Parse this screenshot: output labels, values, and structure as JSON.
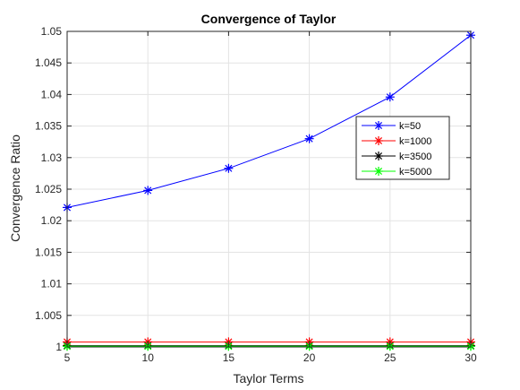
{
  "chart_data": {
    "type": "line",
    "title": "Convergence of Taylor",
    "xlabel": "Taylor Terms",
    "ylabel": "Convergence Ratio",
    "xlim": [
      5,
      30
    ],
    "ylim": [
      1,
      1.05
    ],
    "x": [
      5,
      10,
      15,
      20,
      25,
      30
    ],
    "xticks": [
      "5",
      "10",
      "15",
      "20",
      "25",
      "30"
    ],
    "yticks": [
      "1",
      "1.005",
      "1.01",
      "1.015",
      "1.02",
      "1.025",
      "1.03",
      "1.035",
      "1.04",
      "1.045",
      "1.05"
    ],
    "grid": true,
    "legend_position": "top-right",
    "marker": "asterisk",
    "series": [
      {
        "name": "k=50",
        "color": "#0000ff",
        "values": [
          1.0221,
          1.0248,
          1.0283,
          1.033,
          1.0396,
          1.0494
        ]
      },
      {
        "name": "k=1000",
        "color": "#ff0000",
        "values": [
          1.0008,
          1.0008,
          1.0008,
          1.0008,
          1.0008,
          1.0008
        ]
      },
      {
        "name": "k=3500",
        "color": "#000000",
        "values": [
          1.0002,
          1.0002,
          1.0002,
          1.0002,
          1.0002,
          1.0002
        ]
      },
      {
        "name": "k=5000",
        "color": "#00ff00",
        "values": [
          1.0001,
          1.0001,
          1.0001,
          1.0001,
          1.0001,
          1.0001
        ]
      }
    ]
  }
}
